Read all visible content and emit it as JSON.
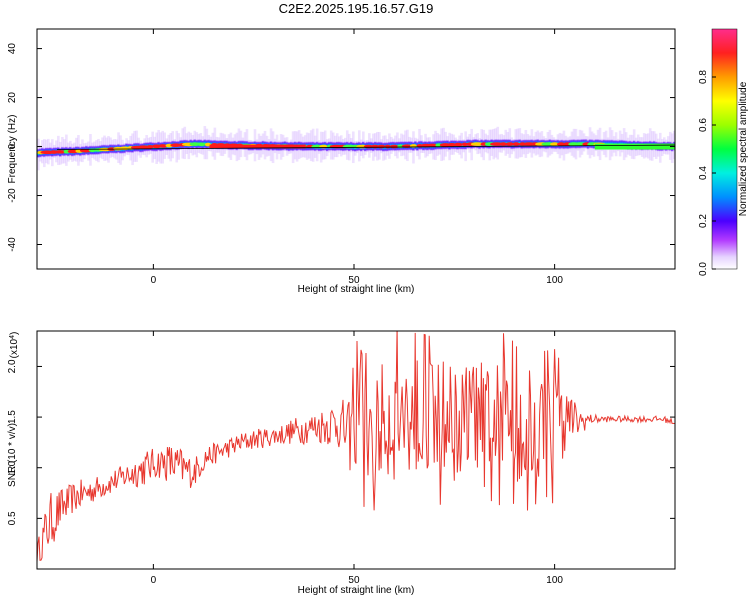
{
  "title": "C2E2.2025.195.16.57.G19",
  "colorbar": {
    "label": "Normalized spectral amplitude",
    "ticks": [
      "0.0",
      "0.2",
      "0.4",
      "0.6",
      "0.8"
    ]
  },
  "chart_data": [
    {
      "type": "heatmap",
      "xlabel": "Height of straight line (km)",
      "ylabel": "Frequency (Hz)",
      "xlim": [
        -29,
        130
      ],
      "ylim": [
        -50,
        48
      ],
      "xticks": [
        "0",
        "50",
        "100"
      ],
      "yticks": [
        "-40",
        "-20",
        "0",
        "20",
        "40"
      ],
      "band_center_hz": [
        [
          -29,
          -2.5
        ],
        [
          -20,
          -2
        ],
        [
          -10,
          -1
        ],
        [
          0,
          0
        ],
        [
          10,
          1
        ],
        [
          20,
          0.5
        ],
        [
          40,
          0
        ],
        [
          60,
          0
        ],
        [
          80,
          1
        ],
        [
          100,
          1
        ],
        [
          110,
          1
        ],
        [
          130,
          0
        ]
      ],
      "band_halfwidth_hz": 2,
      "colorscale": "rainbow",
      "zlim": [
        0,
        1
      ]
    },
    {
      "type": "line",
      "xlabel": "Height of straight line (km)",
      "ylabel": "SNR (10 * v/v)",
      "yscale_label": "(x10^4)",
      "xlim": [
        -29,
        130
      ],
      "ylim": [
        0,
        2.35
      ],
      "xticks": [
        "0",
        "50",
        "100"
      ],
      "yticks": [
        "0.5",
        "1.0",
        "1.5",
        "2.0"
      ],
      "series": [
        {
          "color": "#e8382f",
          "x": [
            -29,
            -26,
            -23,
            -20,
            -17,
            -14,
            -11,
            -8,
            -5,
            -2,
            1,
            4,
            7,
            10,
            13,
            16,
            19,
            22,
            25,
            28,
            31,
            34,
            37,
            40,
            43,
            46,
            49,
            52,
            55,
            58,
            61,
            64,
            67,
            70,
            73,
            76,
            79,
            82,
            85,
            88,
            91,
            94,
            97,
            100,
            103,
            106,
            109,
            112,
            115,
            118,
            121,
            124,
            127,
            130
          ],
          "values": [
            0.15,
            0.45,
            0.6,
            0.7,
            0.75,
            0.8,
            0.85,
            0.9,
            0.95,
            1.0,
            1.05,
            1.05,
            1.0,
            0.95,
            1.1,
            1.15,
            1.2,
            1.25,
            1.28,
            1.3,
            1.32,
            1.35,
            1.38,
            1.4,
            1.42,
            1.45,
            1.3,
            1.6,
            1.35,
            1.5,
            1.5,
            1.5,
            1.55,
            1.45,
            1.5,
            1.4,
            1.5,
            1.55,
            1.45,
            1.5,
            1.4,
            1.4,
            1.45,
            1.4,
            1.5,
            1.45,
            1.48,
            1.48,
            1.48,
            1.48,
            1.48,
            1.48,
            1.48,
            1.45
          ],
          "noise_amplitude": [
            0.1,
            0.3,
            0.2,
            0.15,
            0.15,
            0.12,
            0.12,
            0.12,
            0.15,
            0.18,
            0.15,
            0.2,
            0.2,
            0.15,
            0.12,
            0.1,
            0.1,
            0.1,
            0.1,
            0.1,
            0.1,
            0.12,
            0.15,
            0.15,
            0.2,
            0.25,
            0.35,
            0.7,
            0.55,
            0.6,
            0.65,
            0.6,
            0.55,
            0.6,
            0.6,
            0.55,
            0.6,
            0.5,
            0.6,
            0.6,
            0.55,
            0.6,
            0.5,
            0.55,
            0.3,
            0.15,
            0.05,
            0.03,
            0.03,
            0.03,
            0.03,
            0.03,
            0.03,
            0.03
          ]
        }
      ]
    }
  ]
}
